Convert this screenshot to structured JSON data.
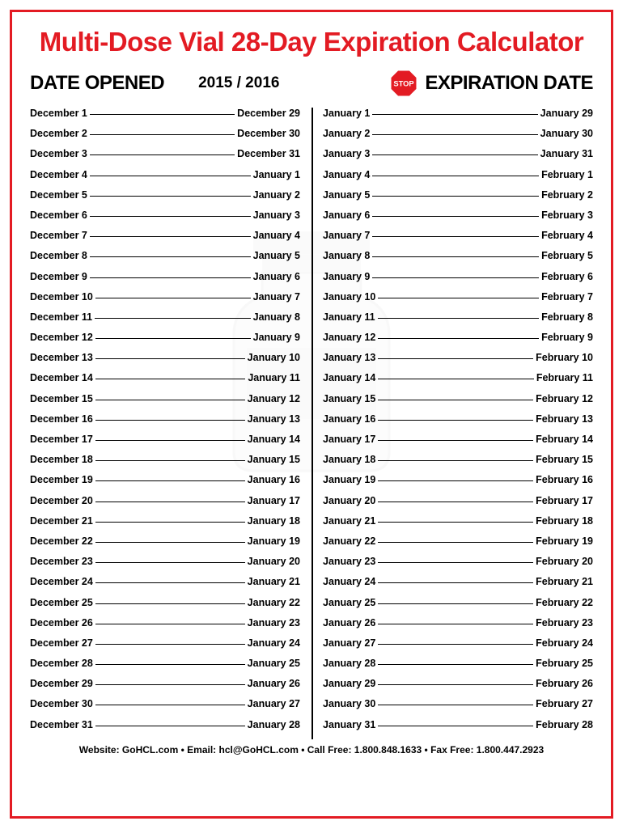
{
  "title": "Multi-Dose Vial 28-Day Expiration Calculator",
  "header": {
    "date_opened": "DATE OPENED",
    "year": "2015 / 2016",
    "stop_text": "STOP",
    "expiration": "EXPIRATION DATE"
  },
  "colors": {
    "border": "#e31b23",
    "title": "#e31b23",
    "text": "#000000",
    "stop_fill": "#e31b23",
    "stop_text": "#ffffff",
    "watermark": "#cccccc"
  },
  "left_column": [
    {
      "open": "December 1",
      "exp": "December 29"
    },
    {
      "open": "December 2",
      "exp": "December 30"
    },
    {
      "open": "December 3",
      "exp": "December 31"
    },
    {
      "open": "December 4",
      "exp": "January 1"
    },
    {
      "open": "December 5",
      "exp": "January 2"
    },
    {
      "open": "December 6",
      "exp": "January 3"
    },
    {
      "open": "December 7",
      "exp": "January 4"
    },
    {
      "open": "December 8",
      "exp": "January 5"
    },
    {
      "open": "December 9",
      "exp": "January 6"
    },
    {
      "open": "December 10",
      "exp": "January 7"
    },
    {
      "open": "December 11",
      "exp": "January 8"
    },
    {
      "open": "December 12",
      "exp": "January 9"
    },
    {
      "open": "December 13",
      "exp": "January 10"
    },
    {
      "open": "December 14",
      "exp": "January 11"
    },
    {
      "open": "December 15",
      "exp": "January 12"
    },
    {
      "open": "December 16",
      "exp": "January 13"
    },
    {
      "open": "December 17",
      "exp": "January 14"
    },
    {
      "open": "December 18",
      "exp": "January 15"
    },
    {
      "open": "December 19",
      "exp": "January 16"
    },
    {
      "open": "December 20",
      "exp": "January 17"
    },
    {
      "open": "December 21",
      "exp": "January 18"
    },
    {
      "open": "December 22",
      "exp": "January 19"
    },
    {
      "open": "December 23",
      "exp": "January 20"
    },
    {
      "open": "December 24",
      "exp": "January 21"
    },
    {
      "open": "December 25",
      "exp": "January 22"
    },
    {
      "open": "December 26",
      "exp": "January 23"
    },
    {
      "open": "December 27",
      "exp": "January 24"
    },
    {
      "open": "December 28",
      "exp": "January 25"
    },
    {
      "open": "December 29",
      "exp": "January 26"
    },
    {
      "open": "December 30",
      "exp": "January 27"
    },
    {
      "open": "December 31",
      "exp": "January 28"
    }
  ],
  "right_column": [
    {
      "open": "January 1",
      "exp": "January 29"
    },
    {
      "open": "January 2",
      "exp": "January 30"
    },
    {
      "open": "January 3",
      "exp": "January 31"
    },
    {
      "open": "January 4",
      "exp": "February 1"
    },
    {
      "open": "January 5",
      "exp": "February 2"
    },
    {
      "open": "January 6",
      "exp": "February 3"
    },
    {
      "open": "January 7",
      "exp": "February 4"
    },
    {
      "open": "January 8",
      "exp": "February 5"
    },
    {
      "open": "January 9",
      "exp": "February 6"
    },
    {
      "open": "January 10",
      "exp": "February 7"
    },
    {
      "open": "January 11",
      "exp": "February 8"
    },
    {
      "open": "January 12",
      "exp": "February 9"
    },
    {
      "open": "January 13",
      "exp": "February 10"
    },
    {
      "open": "January 14",
      "exp": "February 11"
    },
    {
      "open": "January 15",
      "exp": "February 12"
    },
    {
      "open": "January 16",
      "exp": "February 13"
    },
    {
      "open": "January 17",
      "exp": "February 14"
    },
    {
      "open": "January 18",
      "exp": "February 15"
    },
    {
      "open": "January 19",
      "exp": "February 16"
    },
    {
      "open": "January 20",
      "exp": "February 17"
    },
    {
      "open": "January 21",
      "exp": "February 18"
    },
    {
      "open": "January 22",
      "exp": "February 19"
    },
    {
      "open": "January 23",
      "exp": "February 20"
    },
    {
      "open": "January 24",
      "exp": "February 21"
    },
    {
      "open": "January 25",
      "exp": "February 22"
    },
    {
      "open": "January 26",
      "exp": "February 23"
    },
    {
      "open": "January 27",
      "exp": "February 24"
    },
    {
      "open": "January 28",
      "exp": "February 25"
    },
    {
      "open": "January 29",
      "exp": "February 26"
    },
    {
      "open": "January 30",
      "exp": "February 27"
    },
    {
      "open": "January 31",
      "exp": "February 28"
    }
  ],
  "footer": {
    "website_label": "Website: ",
    "website": "GoHCL.com",
    "sep": " • ",
    "email_label": "Email: ",
    "email": "hcl@GoHCL.com",
    "call_label": "Call Free: ",
    "call": "1.800.848.1633",
    "fax_label": "Fax Free: ",
    "fax": "1.800.447.2923"
  }
}
